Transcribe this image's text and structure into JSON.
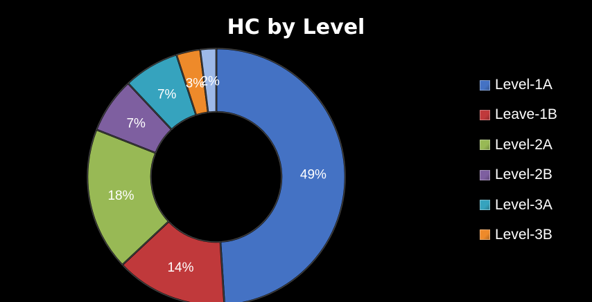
{
  "chart_data": {
    "type": "pie",
    "donut": true,
    "title": "HC by Level",
    "legend_position": "right",
    "slices": [
      {
        "label": "Level-1A",
        "value": 49,
        "value_label": "49%",
        "color": "#4472C4"
      },
      {
        "label": "Leave-1B",
        "value": 14,
        "value_label": "14%",
        "color": "#C0393B"
      },
      {
        "label": "Level-2A",
        "value": 18,
        "value_label": "18%",
        "color": "#98B955"
      },
      {
        "label": "Level-2B",
        "value": 7,
        "value_label": "7%",
        "color": "#7E5FA0"
      },
      {
        "label": "Level-3A",
        "value": 7,
        "value_label": "7%",
        "color": "#36A3BE"
      },
      {
        "label": "Level-3B",
        "value": 3,
        "value_label": "3%",
        "color": "#EE8A2A"
      },
      {
        "label": "",
        "value": 2,
        "value_label": "2%",
        "color": "#9DB9E8"
      }
    ]
  }
}
